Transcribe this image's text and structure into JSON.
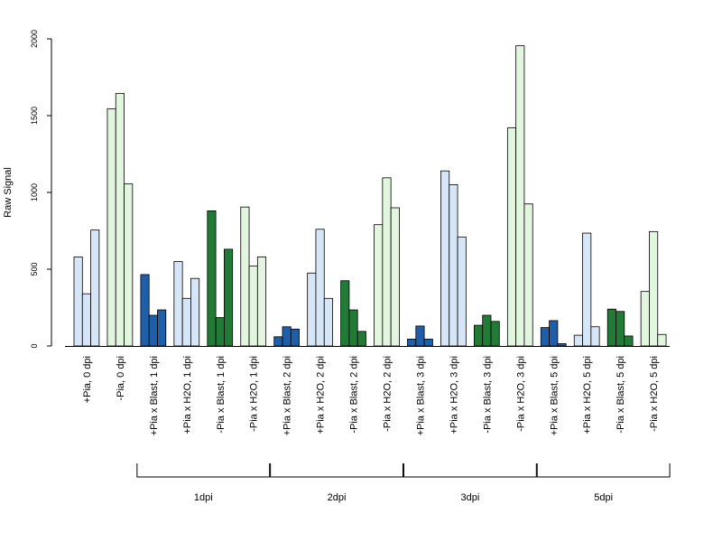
{
  "chart_data": {
    "type": "bar",
    "ylabel": "Raw Signal",
    "ylim": [
      0,
      2000
    ],
    "yticks": [
      0,
      500,
      1000,
      1500,
      2000
    ],
    "grid": false,
    "categories": [
      {
        "label": "+Pia, 0 dpi",
        "color": "#d6e6f7",
        "values": [
          580,
          340,
          755
        ]
      },
      {
        "label": "-Pia, 0 dpi",
        "color": "#e2f5de",
        "values": [
          1545,
          1645,
          1055
        ]
      },
      {
        "label": "+Pia x Blast, 1 dpi",
        "color": "#1f5ea8",
        "values": [
          465,
          200,
          235
        ]
      },
      {
        "label": "+Pia x H2O, 1 dpi",
        "color": "#d6e6f7",
        "values": [
          550,
          310,
          440
        ]
      },
      {
        "label": "-Pia x Blast, 1 dpi",
        "color": "#217a35",
        "values": [
          880,
          185,
          630
        ]
      },
      {
        "label": "-Pia x H2O, 1 dpi",
        "color": "#e2f5de",
        "values": [
          905,
          520,
          580
        ]
      },
      {
        "label": "+Pia x Blast, 2 dpi",
        "color": "#1f5ea8",
        "values": [
          60,
          125,
          110
        ]
      },
      {
        "label": "+Pia x H2O, 2 dpi",
        "color": "#d6e6f7",
        "values": [
          475,
          760,
          310
        ]
      },
      {
        "label": "-Pia x Blast, 2 dpi",
        "color": "#217a35",
        "values": [
          425,
          235,
          95
        ]
      },
      {
        "label": "-Pia x H2O, 2 dpi",
        "color": "#e2f5de",
        "values": [
          790,
          1095,
          900
        ]
      },
      {
        "label": "+Pia x Blast, 3 dpi",
        "color": "#1f5ea8",
        "values": [
          45,
          130,
          45
        ]
      },
      {
        "label": "+Pia x H2O, 3 dpi",
        "color": "#d6e6f7",
        "values": [
          1140,
          1050,
          710
        ]
      },
      {
        "label": "-Pia x Blast, 3 dpi",
        "color": "#217a35",
        "values": [
          135,
          200,
          160
        ]
      },
      {
        "label": "-Pia x H2O, 3 dpi",
        "color": "#e2f5de",
        "values": [
          1420,
          1955,
          925
        ]
      },
      {
        "label": "+Pia x Blast, 5 dpi",
        "color": "#1f5ea8",
        "values": [
          120,
          165,
          15
        ]
      },
      {
        "label": "+Pia x H2O, 5 dpi",
        "color": "#d6e6f7",
        "values": [
          70,
          735,
          125
        ]
      },
      {
        "label": "-Pia x Blast, 5 dpi",
        "color": "#217a35",
        "values": [
          240,
          225,
          65
        ]
      },
      {
        "label": "-Pia x H2O, 5 dpi",
        "color": "#e2f5de",
        "values": [
          355,
          745,
          75
        ]
      }
    ],
    "groups": [
      {
        "label": "1dpi",
        "from": 2,
        "to": 5
      },
      {
        "label": "2dpi",
        "from": 6,
        "to": 9
      },
      {
        "label": "3dpi",
        "from": 10,
        "to": 13
      },
      {
        "label": "5dpi",
        "from": 14,
        "to": 17
      }
    ]
  }
}
